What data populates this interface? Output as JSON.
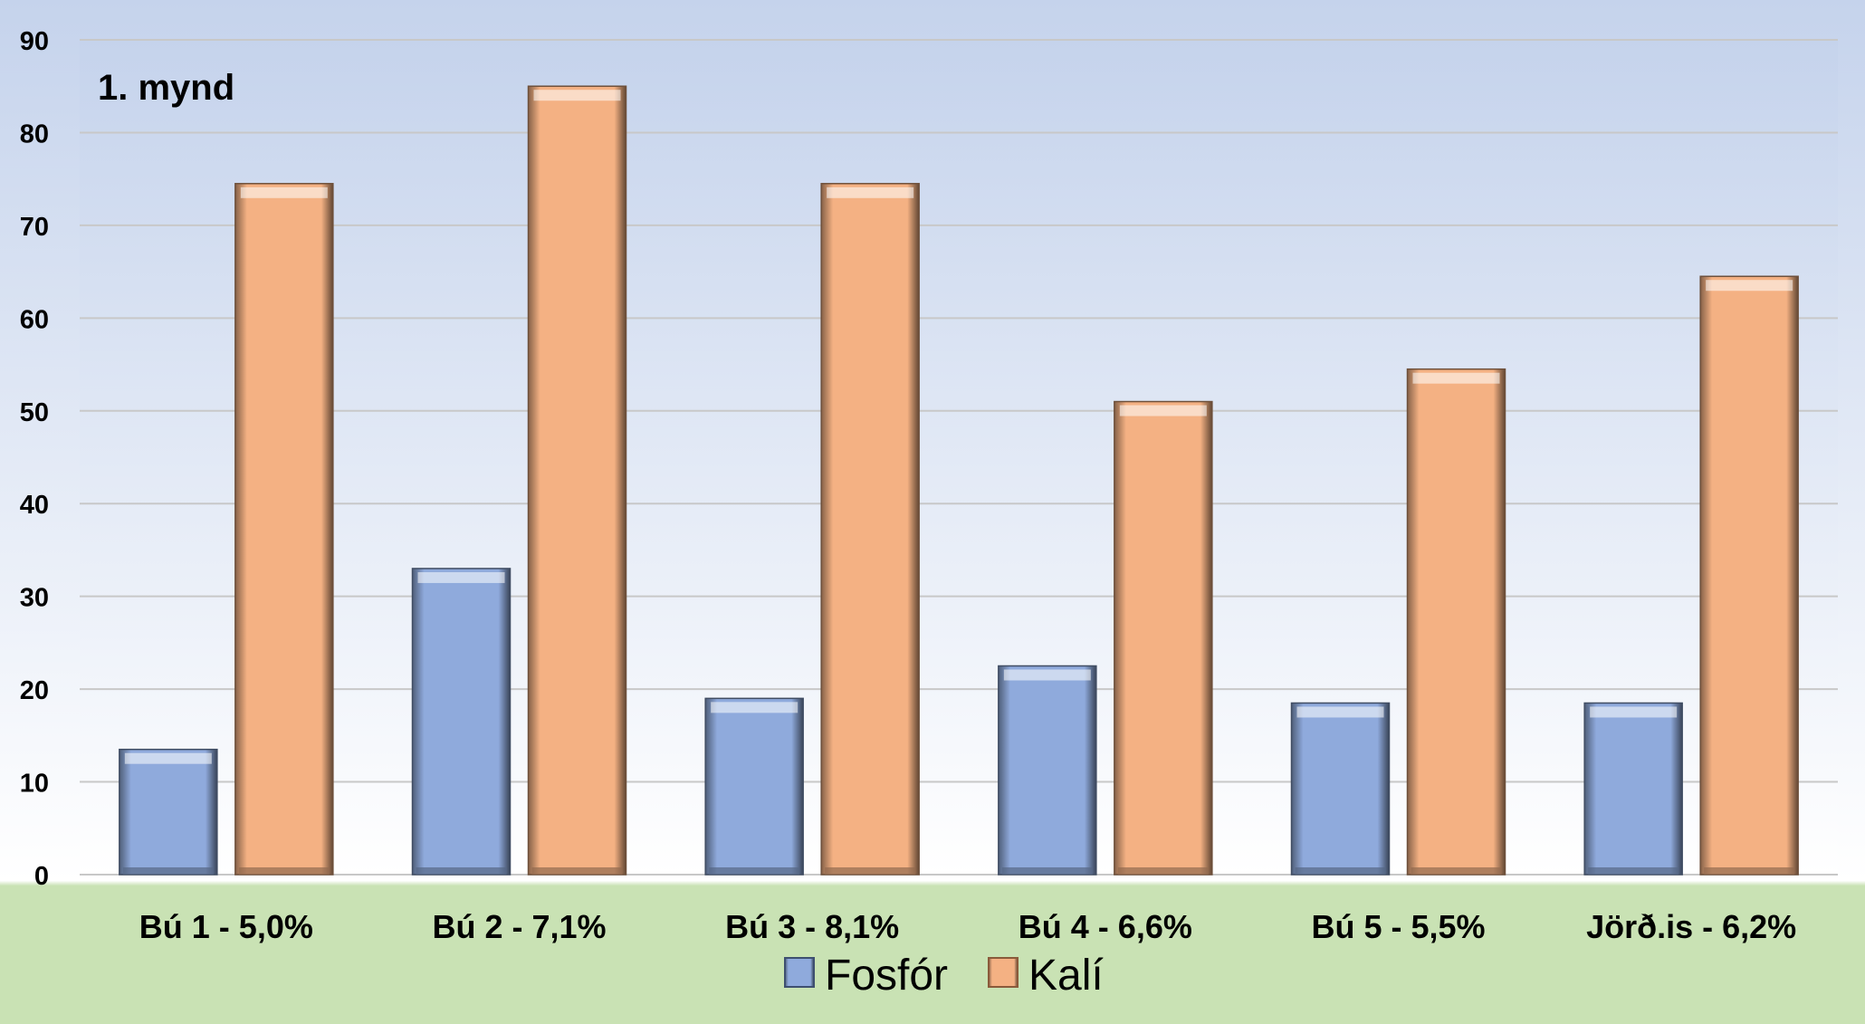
{
  "chart_data": {
    "type": "bar",
    "title": "1. mynd",
    "categories": [
      "Bú 1 - 5,0%",
      "Bú 2 - 7,1%",
      "Bú 3 - 8,1%",
      "Bú 4 - 6,6%",
      "Bú 5 - 5,5%",
      "Jörð.is - 6,2%"
    ],
    "series": [
      {
        "name": "Fosfór",
        "values": [
          13.5,
          33,
          19,
          22.5,
          18.5,
          18.5
        ],
        "color": "#8FAADC"
      },
      {
        "name": "Kalí",
        "values": [
          74.5,
          85,
          74.5,
          51,
          54.5,
          64.5
        ],
        "color": "#F4B183"
      }
    ],
    "xlabel": "",
    "ylabel": "",
    "ylim": [
      0,
      90
    ],
    "yticks": [
      0,
      10,
      20,
      30,
      40,
      50,
      60,
      70,
      80,
      90
    ],
    "grid": true,
    "legend_position": "bottom",
    "background": {
      "top": "#C5D3EC",
      "middle": "#FFFFFF",
      "bottom": "#C9E2B4"
    }
  }
}
